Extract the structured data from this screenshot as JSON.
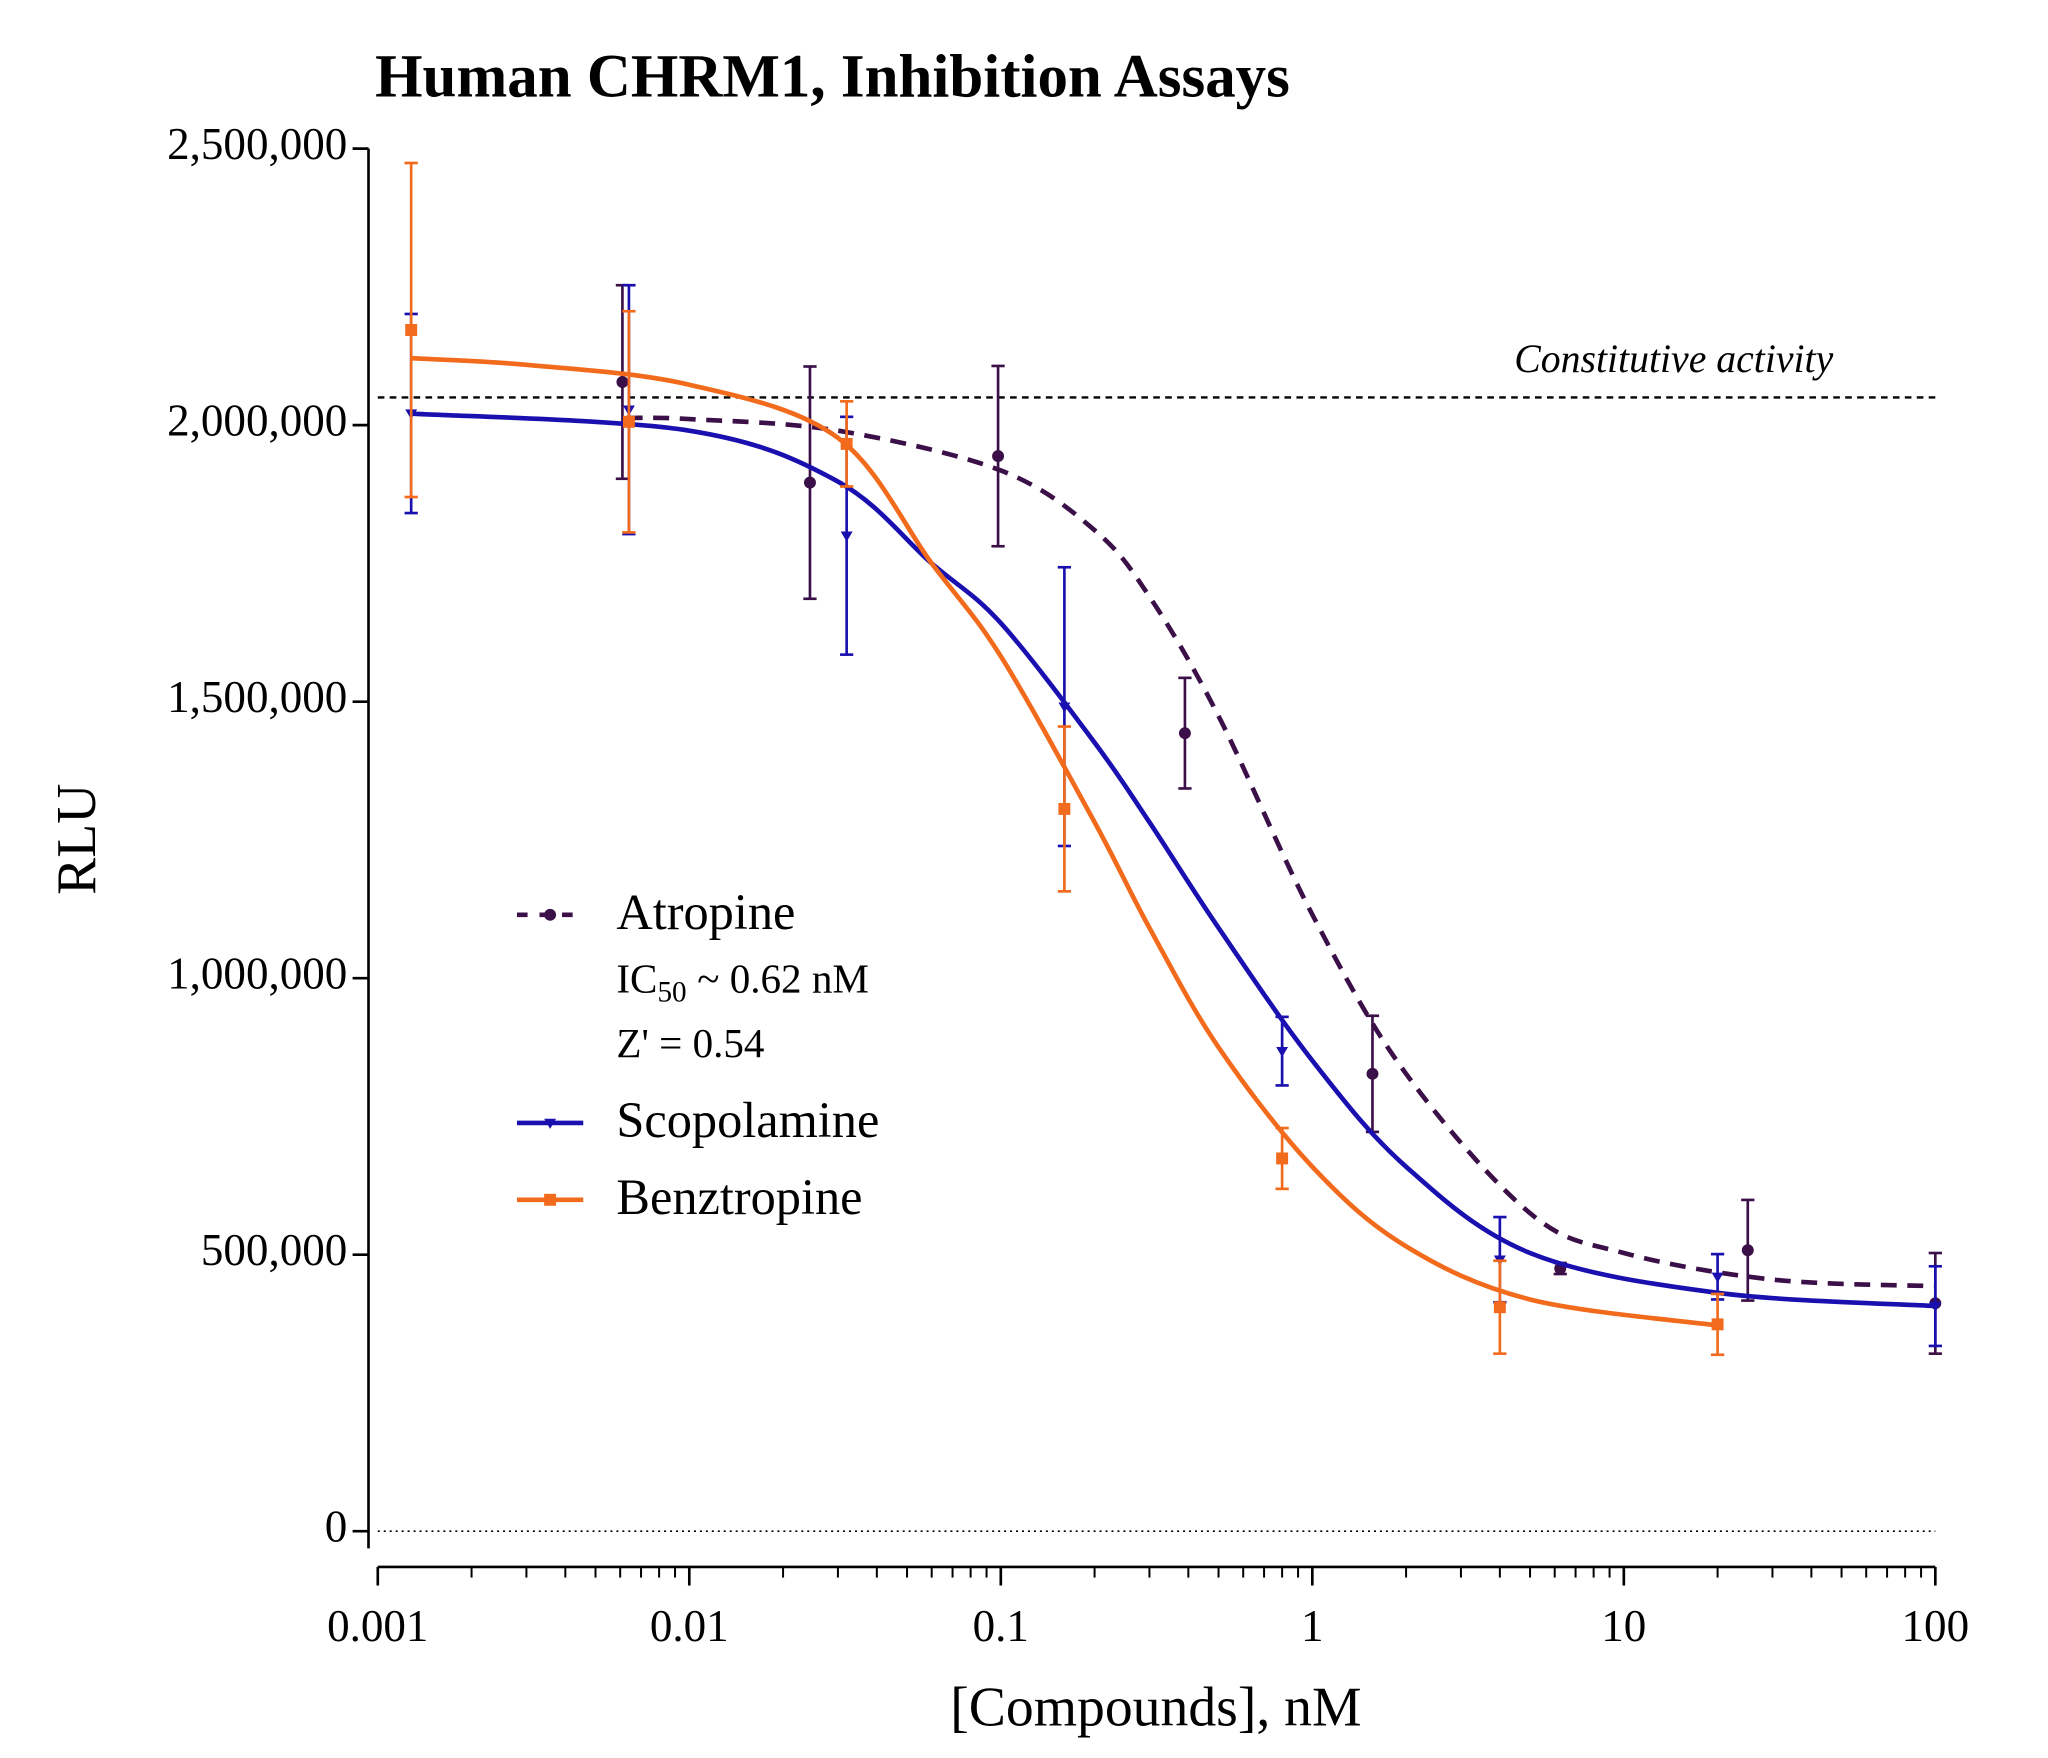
{
  "chart_data": {
    "type": "scatter",
    "title": "Human CHRM1, Inhibition Assays",
    "x_label": "[Compounds], nM",
    "y_label": "RLU",
    "x_scale": "log",
    "minor_ticks": true,
    "grid": false,
    "legend_position": "center-left",
    "xlim": [
      0.001,
      100
    ],
    "xticks": [
      0.001,
      0.01,
      0.1,
      1,
      10,
      100
    ],
    "ylim": [
      0,
      2500000
    ],
    "yticks": [
      0,
      {
        "value": 500000,
        "label": "500,000"
      },
      {
        "value": 1000000,
        "label": "1,000,000"
      },
      {
        "value": 1500000,
        "label": "1,500,000"
      },
      {
        "value": 2000000,
        "label": "2,000,000"
      },
      {
        "value": 2500000,
        "label": "2,500,000"
      }
    ],
    "reference_lines": [
      {
        "value": 2050000,
        "label": "Constitutive activity",
        "style": "dashed"
      },
      {
        "value": 0,
        "style": "dotted"
      }
    ],
    "legend_notes": {
      "ic50": {
        "prefix": "IC",
        "subscript": "50",
        "text": "~ 0.62 nM"
      },
      "z_prime": "Z' = 0.54"
    },
    "series": [
      {
        "name": "Atropine",
        "color": "#3b0f47",
        "marker": "circle",
        "line_style": "dashed",
        "x": [
          0.0061,
          0.0244,
          0.098,
          0.39,
          1.56,
          6.25,
          25,
          100
        ],
        "values": [
          2078000,
          1896000,
          1944000,
          1443000,
          827000,
          475000,
          508000,
          412000
        ],
        "errors": [
          175000,
          210000,
          163000,
          100000,
          105000,
          10000,
          91000,
          91000
        ],
        "fit": {
          "x": [
            0.0063,
            0.01,
            0.03,
            0.1,
            0.2,
            0.3,
            0.5,
            1,
            2,
            5,
            10,
            30,
            100
          ],
          "values": [
            2013000,
            2011000,
            1990000,
            1918000,
            1810000,
            1690000,
            1474000,
            1115000,
            827000,
            575000,
            503000,
            455000,
            443000
          ]
        }
      },
      {
        "name": "Scopolamine",
        "color": "#1a10b0",
        "marker": "triangle-down",
        "line_style": "solid",
        "x": [
          0.00128,
          0.0064,
          0.032,
          0.16,
          0.8,
          4,
          20,
          100
        ],
        "values": [
          2021000,
          2028000,
          1800000,
          1491000,
          868000,
          491000,
          460000,
          407000
        ],
        "errors": [
          180000,
          225000,
          215000,
          252000,
          62000,
          77000,
          41000,
          72000
        ],
        "fit": {
          "x": [
            0.00128,
            0.01,
            0.03,
            0.06,
            0.1,
            0.2,
            0.3,
            0.5,
            1,
            2,
            5,
            20,
            100
          ],
          "values": [
            2021000,
            1990000,
            1898000,
            1750000,
            1642000,
            1426000,
            1282000,
            1091000,
            851000,
            659000,
            503000,
            431000,
            407000
          ]
        }
      },
      {
        "name": "Benztropine",
        "color": "#f26a1b",
        "marker": "square",
        "line_style": "solid",
        "x": [
          0.00128,
          0.0064,
          0.032,
          0.16,
          0.8,
          4,
          20
        ],
        "values": [
          2172000,
          2006000,
          1966000,
          1306000,
          674000,
          405000,
          374000
        ],
        "errors": [
          302000,
          200000,
          77000,
          149000,
          55000,
          84000,
          55000
        ],
        "fit": {
          "x": [
            0.00128,
            0.003,
            0.01,
            0.03,
            0.06,
            0.1,
            0.2,
            0.3,
            0.5,
            1,
            2,
            5,
            20
          ],
          "values": [
            2121000,
            2109000,
            2073000,
            1977000,
            1750000,
            1582000,
            1282000,
            1091000,
            875000,
            659000,
            515000,
            419000,
            372000
          ]
        }
      }
    ]
  }
}
